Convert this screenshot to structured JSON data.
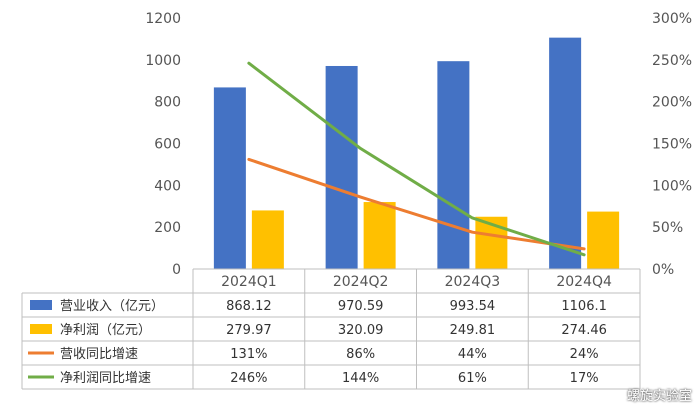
{
  "chart_data": {
    "type": "bar",
    "title": "",
    "categories": [
      "2024Q1",
      "2024Q2",
      "2024Q3",
      "2024Q4"
    ],
    "y_left": {
      "ylim": [
        0,
        1200
      ],
      "ticks": [
        0,
        200,
        400,
        600,
        800,
        1000,
        1200
      ]
    },
    "y_right": {
      "ylim": [
        0,
        300
      ],
      "ticks": [
        "0%",
        "50%",
        "100%",
        "150%",
        "200%",
        "250%",
        "300%"
      ],
      "tick_values": [
        0,
        50,
        100,
        150,
        200,
        250,
        300
      ]
    },
    "grid": false,
    "series": [
      {
        "name": "营业收入（亿元）",
        "type": "bar",
        "axis": "left",
        "color": "#4472c4",
        "values": [
          868.12,
          970.59,
          993.54,
          1106.1
        ],
        "labels": [
          "868.12",
          "970.59",
          "993.54",
          "1106.1"
        ]
      },
      {
        "name": "净利润（亿元）",
        "type": "bar",
        "axis": "left",
        "color": "#ffc000",
        "values": [
          279.97,
          320.09,
          249.81,
          274.46
        ],
        "labels": [
          "279.97",
          "320.09",
          "249.81",
          "274.46"
        ]
      },
      {
        "name": "营收同比增速",
        "type": "line",
        "axis": "right",
        "color": "#ed7d31",
        "values": [
          131,
          86,
          44,
          24
        ],
        "labels": [
          "131%",
          "86%",
          "44%",
          "24%"
        ]
      },
      {
        "name": "净利润同比增速",
        "type": "line",
        "axis": "right",
        "color": "#70ad47",
        "values": [
          246,
          144,
          61,
          17
        ],
        "labels": [
          "246%",
          "144%",
          "61%",
          "17%"
        ]
      }
    ]
  },
  "watermark": "螺旋实验室"
}
